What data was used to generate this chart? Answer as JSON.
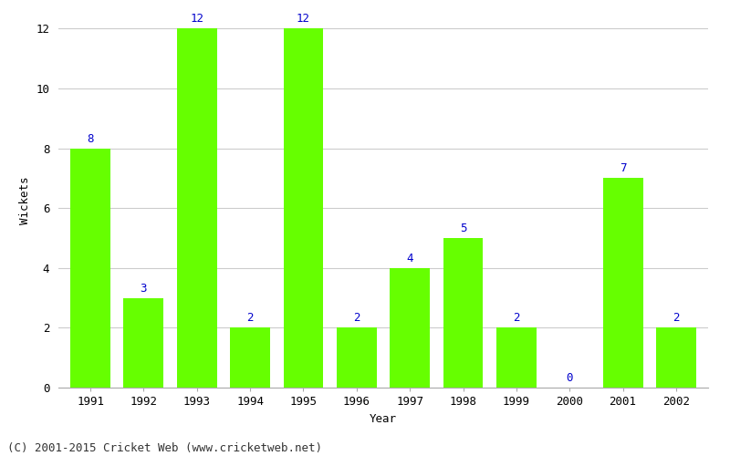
{
  "years": [
    1991,
    1992,
    1993,
    1994,
    1995,
    1996,
    1997,
    1998,
    1999,
    2000,
    2001,
    2002
  ],
  "wickets": [
    8,
    3,
    12,
    2,
    12,
    2,
    4,
    5,
    2,
    0,
    7,
    2
  ],
  "bar_color": "#66ff00",
  "bar_edge_color": "#66ff00",
  "label_color": "#0000cc",
  "xlabel": "Year",
  "ylabel": "Wickets",
  "ylim": [
    0,
    12
  ],
  "yticks": [
    0,
    2,
    4,
    6,
    8,
    10,
    12
  ],
  "footer": "(C) 2001-2015 Cricket Web (www.cricketweb.net)",
  "bg_color": "#ffffff",
  "grid_color": "#cccccc",
  "label_fontsize": 9,
  "axis_fontsize": 9,
  "footer_fontsize": 9,
  "bar_width": 0.75
}
